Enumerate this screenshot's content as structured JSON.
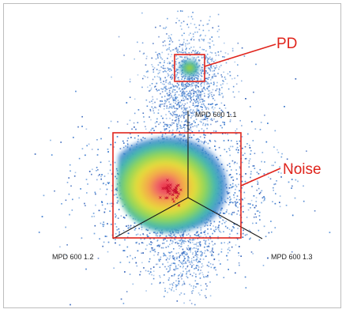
{
  "chart_data": {
    "type": "scatter",
    "title": "",
    "axes": [
      {
        "name": "MPD 600 1.1",
        "direction": "up"
      },
      {
        "name": "MPD 600 1.2",
        "direction": "lower-left"
      },
      {
        "name": "MPD 600 1.3",
        "direction": "lower-right"
      }
    ],
    "clusters": [
      {
        "name": "PD",
        "color_scale": "density",
        "peak_color": "#e8e020"
      },
      {
        "name": "Noise",
        "color_scale": "density",
        "peak_color": "#e02020"
      }
    ],
    "annotations": [
      {
        "text": "PD",
        "color": "#e0241c"
      },
      {
        "text": "Noise",
        "color": "#e0241c"
      }
    ],
    "grid": false,
    "legend": "none"
  },
  "colors": {
    "annotation": "#e0241c",
    "density_low": "#3b6fd0",
    "density_high": "#e02020"
  }
}
